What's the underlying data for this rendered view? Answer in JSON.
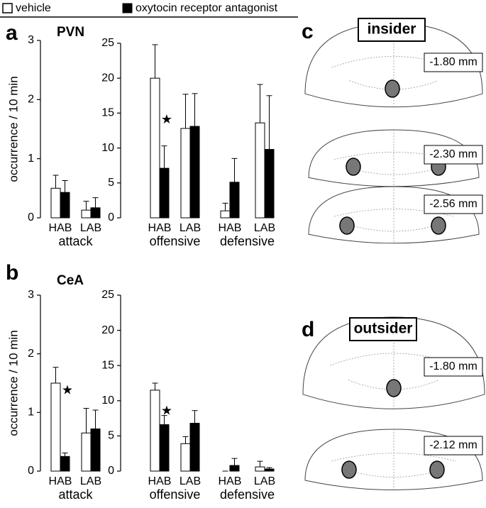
{
  "chart_data": [
    {
      "type": "bar",
      "panel": "a",
      "title": "PVN",
      "ylabel": "occurrence / 10 min",
      "categories": [
        "HAB",
        "LAB"
      ],
      "groups": [
        "attack"
      ],
      "ylim": [
        0,
        3
      ],
      "yticks": [
        0,
        1,
        2,
        3
      ],
      "series": [
        {
          "name": "vehicle",
          "color": "#ffffff",
          "values": [
            0.5,
            0.13
          ],
          "errors": [
            0.22,
            0.15
          ]
        },
        {
          "name": "oxytocin receptor antagonist",
          "color": "#000000",
          "values": [
            0.43,
            0.17
          ],
          "errors": [
            0.2,
            0.17
          ]
        }
      ]
    },
    {
      "type": "bar",
      "categories": [
        "HAB",
        "LAB",
        "HAB",
        "LAB"
      ],
      "groups": [
        "offensive",
        "defensive"
      ],
      "ylim": [
        0,
        25
      ],
      "yticks": [
        0,
        5,
        10,
        15,
        20,
        25
      ],
      "series": [
        {
          "name": "vehicle",
          "color": "#ffffff",
          "values": [
            20,
            12.8,
            1,
            13.6
          ],
          "errors": [
            4.8,
            4.9,
            1.1,
            5.5
          ]
        },
        {
          "name": "oxytocin receptor antagonist",
          "color": "#000000",
          "values": [
            7.1,
            13.1,
            5.1,
            9.8
          ],
          "errors": [
            3.2,
            4.7,
            3.4,
            7.7
          ]
        }
      ],
      "annotations": [
        {
          "text": "★",
          "category": 0,
          "y": 14
        }
      ]
    },
    {
      "type": "bar",
      "panel": "b",
      "title": "CeA",
      "ylabel": "occurrence / 10 min",
      "categories": [
        "HAB",
        "LAB"
      ],
      "groups": [
        "attack"
      ],
      "ylim": [
        0,
        3
      ],
      "yticks": [
        0,
        1,
        2,
        3
      ],
      "series": [
        {
          "name": "vehicle",
          "color": "#ffffff",
          "values": [
            1.5,
            0.65
          ],
          "errors": [
            0.27,
            0.42
          ]
        },
        {
          "name": "oxytocin receptor antagonist",
          "color": "#000000",
          "values": [
            0.25,
            0.72
          ],
          "errors": [
            0.06,
            0.32
          ]
        }
      ],
      "annotations": [
        {
          "text": "★",
          "category": 0,
          "y": 1.37
        }
      ]
    },
    {
      "type": "bar",
      "categories": [
        "HAB",
        "LAB",
        "HAB",
        "LAB"
      ],
      "groups": [
        "offensive",
        "defensive"
      ],
      "ylim": [
        0,
        25
      ],
      "yticks": [
        0,
        5,
        10,
        15,
        20,
        25
      ],
      "series": [
        {
          "name": "vehicle",
          "color": "#ffffff",
          "values": [
            11.5,
            3.9,
            0,
            0.6
          ],
          "errors": [
            1,
            1,
            0,
            0.8
          ]
        },
        {
          "name": "oxytocin receptor antagonist",
          "color": "#000000",
          "values": [
            6.6,
            6.8,
            0.8,
            0.3
          ],
          "errors": [
            1.3,
            1.8,
            1,
            0.2
          ]
        }
      ],
      "annotations": [
        {
          "text": "★",
          "category": 0,
          "y": 8.5
        }
      ]
    }
  ],
  "diagrams": [
    {
      "panel": "c",
      "title": "insider",
      "sections": [
        "-1.80 mm",
        "-2.30 mm",
        "-2.56 mm"
      ]
    },
    {
      "panel": "d",
      "title": "outsider",
      "sections": [
        "-1.80 mm",
        "-2.12 mm"
      ]
    }
  ]
}
